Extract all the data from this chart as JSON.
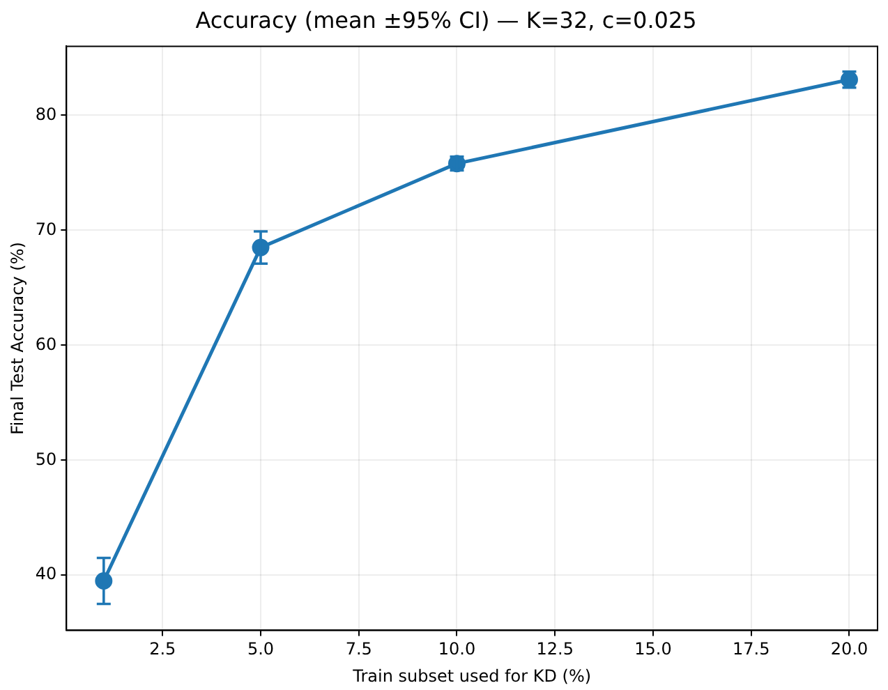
{
  "chart_data": {
    "type": "line",
    "title": "Accuracy (mean ±95% CI) — K=32, c=0.025",
    "xlabel": "Train subset used for KD (%)",
    "ylabel": "Final Test Accuracy (%)",
    "x": [
      1,
      5,
      10,
      20
    ],
    "series": [
      {
        "color": "#1f77b4",
        "values": [
          39.5,
          68.5,
          75.8,
          83.1
        ],
        "errors": [
          2.0,
          1.4,
          0.6,
          0.7
        ]
      }
    ],
    "xlim": [
      0.05,
      20.72
    ],
    "xticks": [
      {
        "value": 2.5,
        "label": "2.5"
      },
      {
        "value": 5,
        "label": "5.0"
      },
      {
        "value": 7.5,
        "label": "7.5"
      },
      {
        "value": 10,
        "label": "10.0"
      },
      {
        "value": 12.5,
        "label": "12.5"
      },
      {
        "value": 15,
        "label": "15.0"
      },
      {
        "value": 17.5,
        "label": "17.5"
      },
      {
        "value": 20,
        "label": "20.0"
      }
    ],
    "ylim": [
      35.2,
      86
    ],
    "yticks": [
      40,
      50,
      60,
      70,
      80
    ],
    "grid": true,
    "legend": false,
    "marker": "circle",
    "line_style": "solid"
  }
}
